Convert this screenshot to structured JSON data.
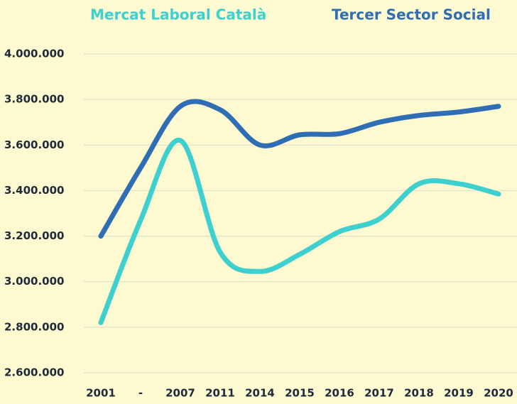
{
  "chart_data": {
    "type": "line",
    "categories": [
      "2001",
      "-",
      "2007",
      "2011",
      "2014",
      "2015",
      "2016",
      "2017",
      "2018",
      "2019",
      "2020"
    ],
    "series": [
      {
        "name": "Mercat Laboral Català",
        "color": "#3ecfcf",
        "values": [
          2820000,
          3270000,
          3620000,
          3130000,
          3045000,
          3120000,
          3220000,
          3275000,
          3430000,
          3430000,
          3385000
        ]
      },
      {
        "name": "Tercer Sector Social",
        "color": "#2f6db5",
        "values": [
          3200000,
          3500000,
          3770000,
          3755000,
          3600000,
          3645000,
          3650000,
          3700000,
          3730000,
          3745000,
          3770000
        ]
      }
    ],
    "ylim": [
      2600000,
      4000000
    ],
    "yticks": [
      {
        "value": 2600000,
        "label": "2.600.000"
      },
      {
        "value": 2800000,
        "label": "2.800.000"
      },
      {
        "value": 3000000,
        "label": "3.000.000"
      },
      {
        "value": 3200000,
        "label": "3.200.000"
      },
      {
        "value": 3400000,
        "label": "3.400.000"
      },
      {
        "value": 3600000,
        "label": "3.600.000"
      },
      {
        "value": 3800000,
        "label": "3.800.000"
      },
      {
        "value": 4000000,
        "label": "4.000.000"
      }
    ],
    "grid": true
  }
}
